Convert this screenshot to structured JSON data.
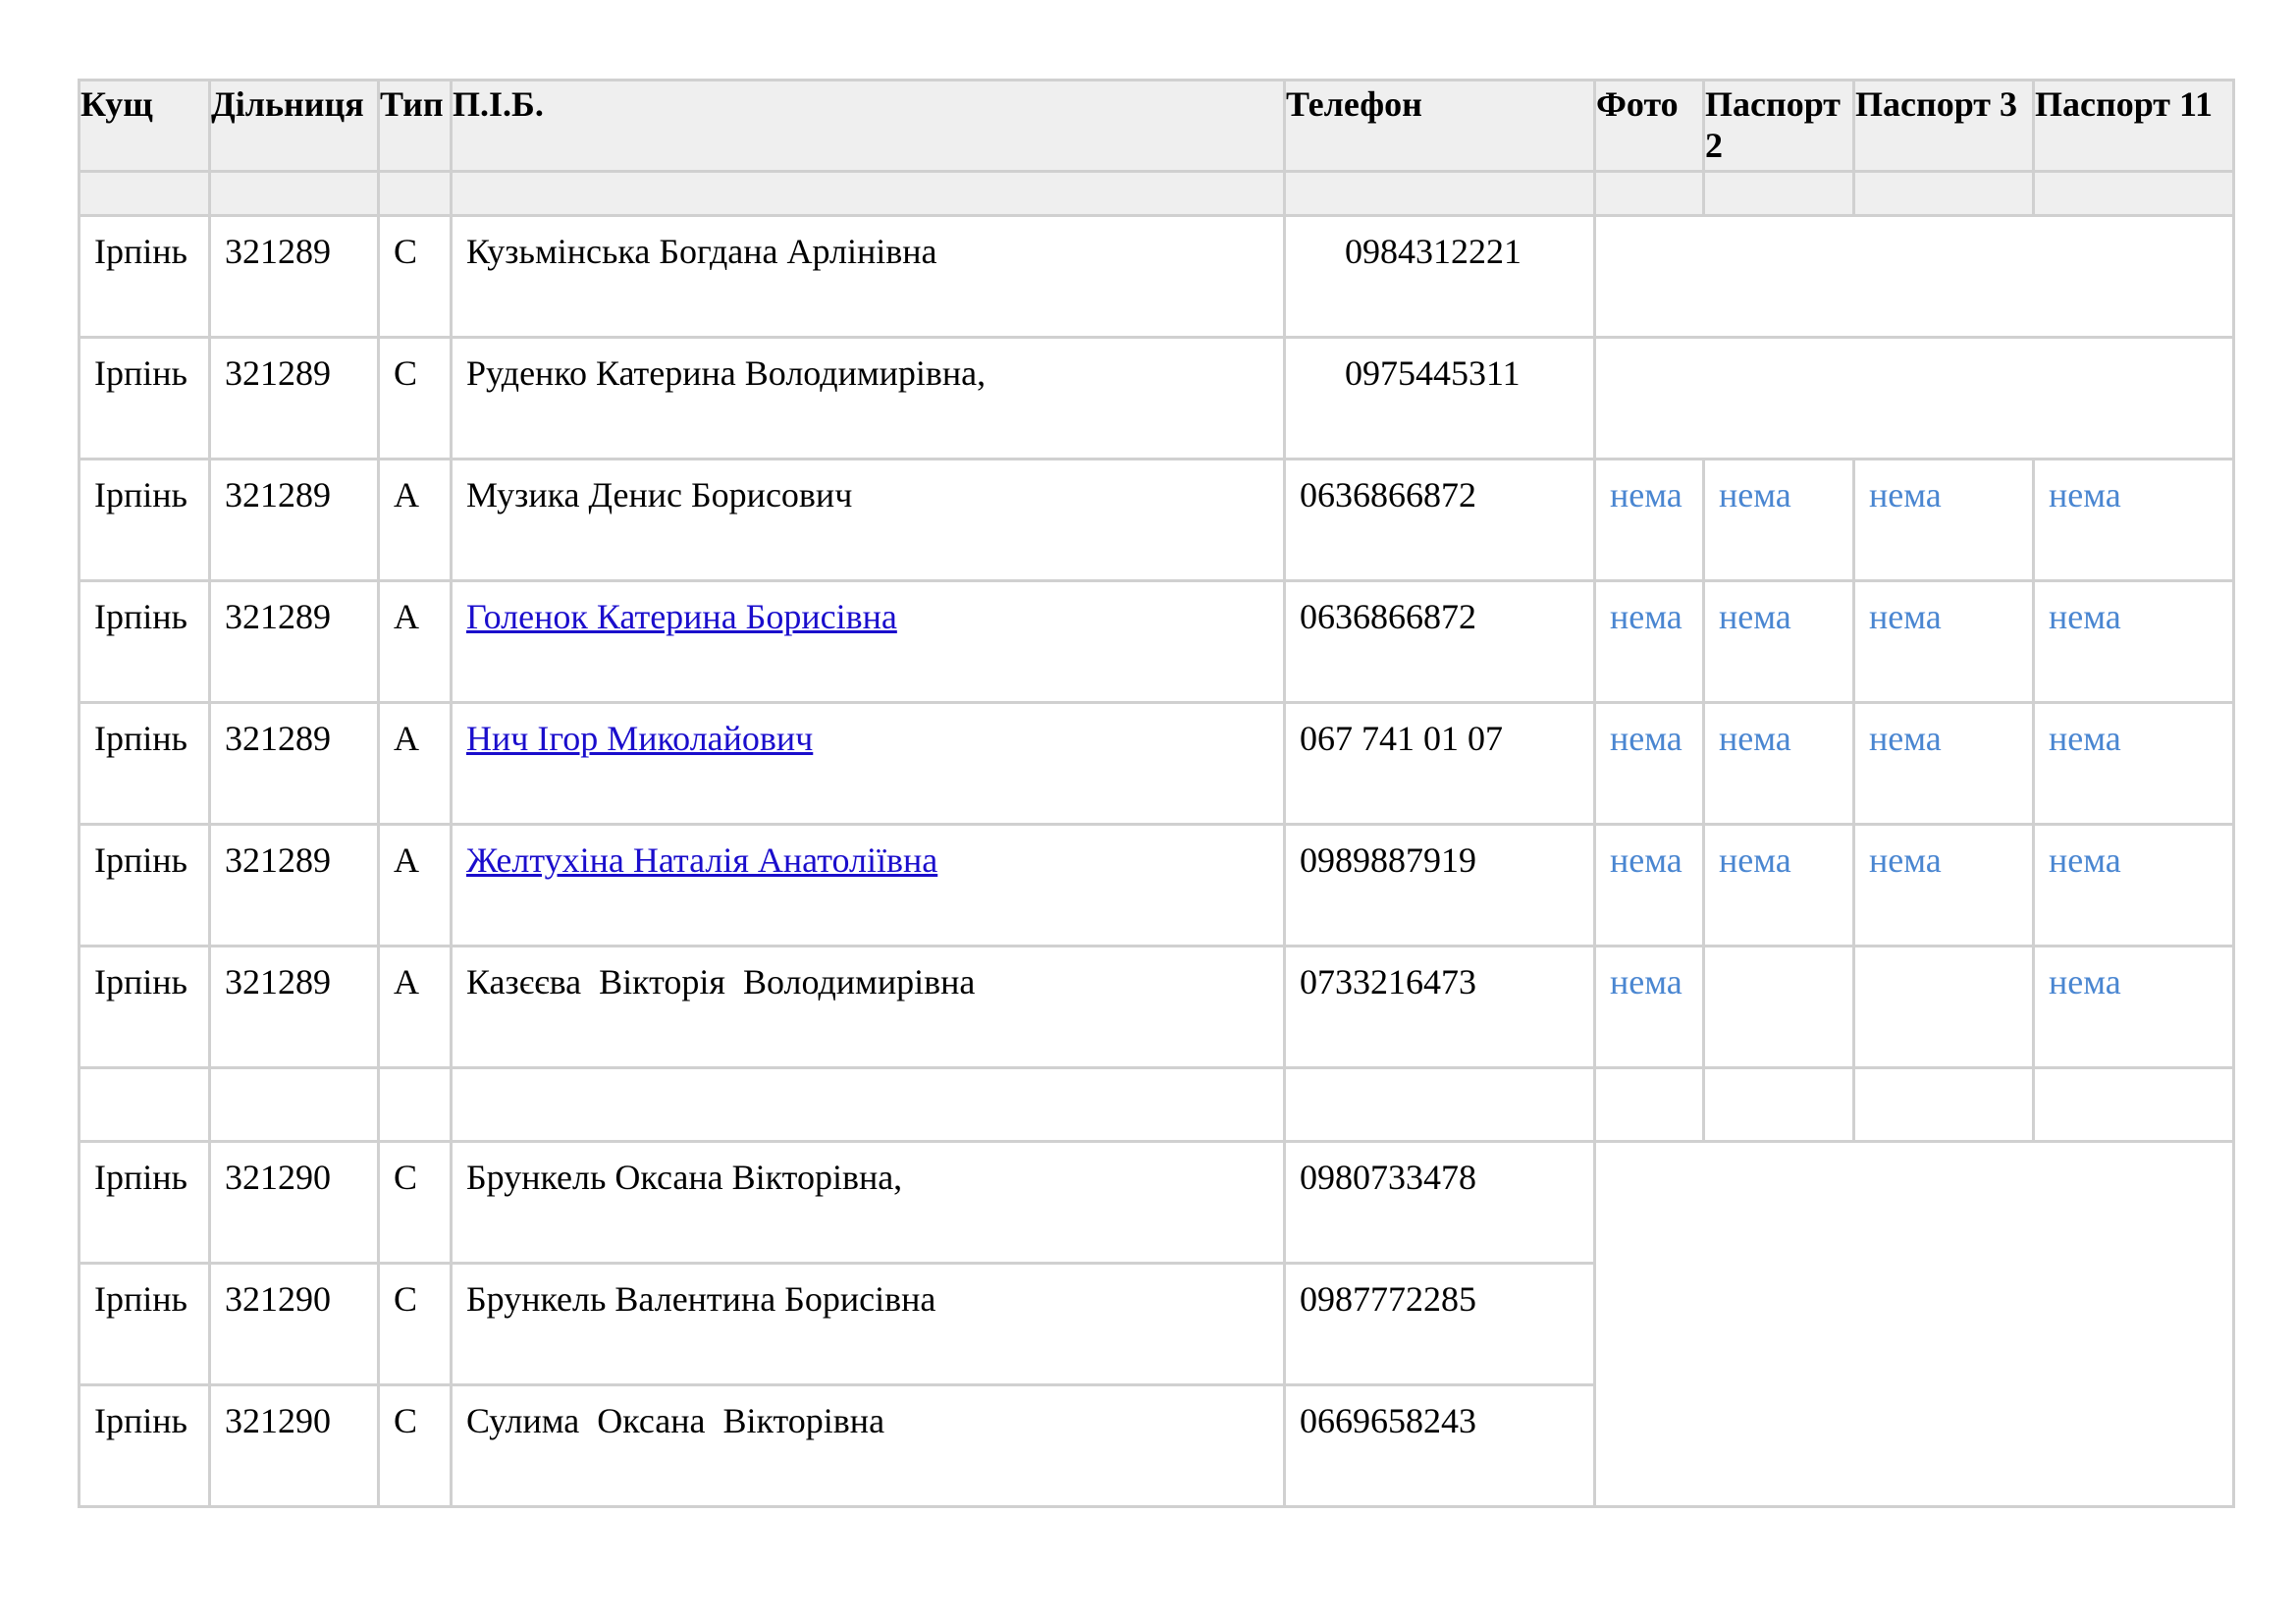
{
  "headers": [
    "Кущ",
    "Дільниця",
    "Тип",
    "П.І.Б.",
    "Телефон",
    "Фото",
    "Паспорт 2",
    "Паспорт 3",
    "Паспорт 11"
  ],
  "rows": [
    {
      "kush": "Ірпінь",
      "dilnytsia": "321289",
      "typ": "С",
      "pib": "Кузьмінська Богдана Арлінівна",
      "phone": "0984312221"
    },
    {
      "kush": "Ірпінь",
      "dilnytsia": "321289",
      "typ": "С",
      "pib": "Руденко Катерина Володимирівна,",
      "phone": "0975445311"
    },
    {
      "kush": "Ірпінь",
      "dilnytsia": "321289",
      "typ": "А",
      "pib": "Музика Денис Борисович",
      "phone": "0636866872",
      "foto": "нема",
      "pasport2": "нема",
      "pasport3": "нема",
      "pasport11": "нема"
    },
    {
      "kush": "Ірпінь",
      "dilnytsia": "321289",
      "typ": "А",
      "pib": "Голенок Катерина Борисівна",
      "phone": "0636866872",
      "foto": "нема",
      "pasport2": "нема",
      "pasport3": "нема",
      "pasport11": "нема"
    },
    {
      "kush": "Ірпінь",
      "dilnytsia": "321289",
      "typ": "А",
      "pib": "Нич Ігор Миколайович",
      "phone": "067 741 01 07",
      "foto": "нема",
      "pasport2": "нема",
      "pasport3": "нема",
      "pasport11": "нема"
    },
    {
      "kush": "Ірпінь",
      "dilnytsia": "321289",
      "typ": "А",
      "pib": "Желтухіна Наталія Анатоліївна",
      "phone": "0989887919",
      "foto": "нема",
      "pasport2": "нема",
      "pasport3": "нема",
      "pasport11": "нема"
    },
    {
      "kush": "Ірпінь",
      "dilnytsia": "321289",
      "typ": "А",
      "pib": "Казєєва  Вікторія  Володимирівна",
      "phone": "0733216473",
      "foto": "нема",
      "pasport11": "нема"
    },
    {
      "kush": "Ірпінь",
      "dilnytsia": "321290",
      "typ": "С",
      "pib": "Брункель Оксана Вікторівна,",
      "phone": "0980733478"
    },
    {
      "kush": "Ірпінь",
      "dilnytsia": "321290",
      "typ": "С",
      "pib": "Брункель Валентина Борисівна",
      "phone": "0987772285"
    },
    {
      "kush": "Ірпінь",
      "dilnytsia": "321290",
      "typ": "С",
      "pib": "Сулима  Оксана  Вікторівна",
      "phone": "0669658243"
    }
  ],
  "colors": {
    "link": "#1a0dcc",
    "nema": "#4a86d1",
    "header_bg": "#efefef",
    "border": "#d0d0d0"
  }
}
